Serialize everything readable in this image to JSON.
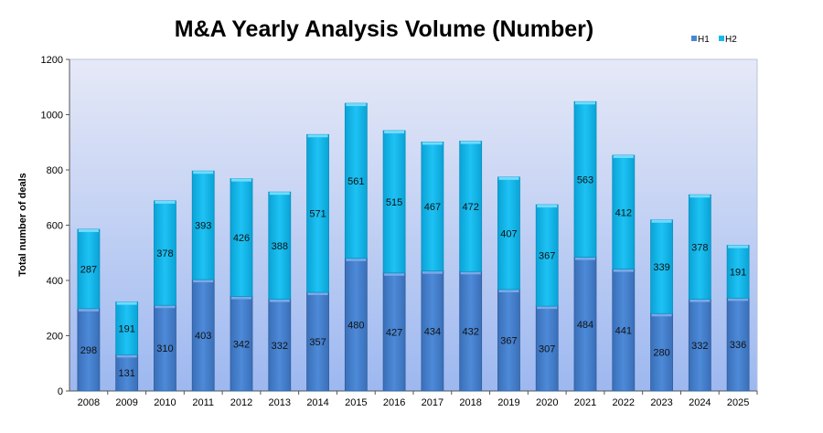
{
  "chart_data": {
    "type": "bar",
    "stacked": true,
    "title": "M&A Yearly Analysis Volume (Number)",
    "xlabel": "",
    "ylabel": "Total number of deals",
    "ylim": [
      0,
      1200
    ],
    "yticks": [
      0,
      200,
      400,
      600,
      800,
      1000,
      1200
    ],
    "grid": false,
    "legend_position": "top-right",
    "categories": [
      "2008",
      "2009",
      "2010",
      "2011",
      "2012",
      "2013",
      "2014",
      "2015",
      "2016",
      "2017",
      "2018",
      "2019",
      "2020",
      "2021",
      "2022",
      "2023",
      "2024",
      "2025"
    ],
    "series": [
      {
        "name": "H1",
        "color": "#4a86d4",
        "values": [
          298,
          131,
          310,
          403,
          342,
          332,
          357,
          480,
          427,
          434,
          432,
          367,
          307,
          484,
          441,
          280,
          332,
          336
        ]
      },
      {
        "name": "H2",
        "color": "#16b8ee",
        "values": [
          287,
          191,
          378,
          393,
          426,
          388,
          571,
          561,
          515,
          467,
          472,
          407,
          367,
          563,
          412,
          339,
          378,
          191
        ]
      }
    ]
  }
}
